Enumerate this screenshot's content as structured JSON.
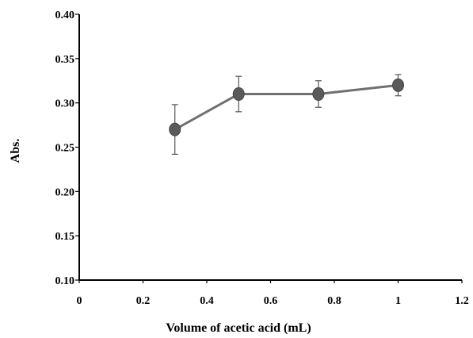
{
  "chart_data": {
    "type": "line",
    "title": "",
    "xlabel": "Volume of acetic acid (mL)",
    "ylabel": "Abs.",
    "xlim": [
      0,
      1.2
    ],
    "ylim": [
      0.1,
      0.4
    ],
    "x_ticks": [
      "0",
      "0.2",
      "0.4",
      "0.6",
      "0.8",
      "1",
      "1.2"
    ],
    "y_ticks": [
      "0.10",
      "0.15",
      "0.20",
      "0.25",
      "0.30",
      "0.35",
      "0.40"
    ],
    "grid": false,
    "colors": {
      "line": "#707070",
      "marker": "#5a5a5a",
      "error_bar": "#555555"
    },
    "series": [
      {
        "x": [
          0.3,
          0.5,
          0.75,
          1.0
        ],
        "y": [
          0.27,
          0.31,
          0.31,
          0.32
        ],
        "error": [
          0.028,
          0.02,
          0.015,
          0.012
        ]
      }
    ]
  }
}
